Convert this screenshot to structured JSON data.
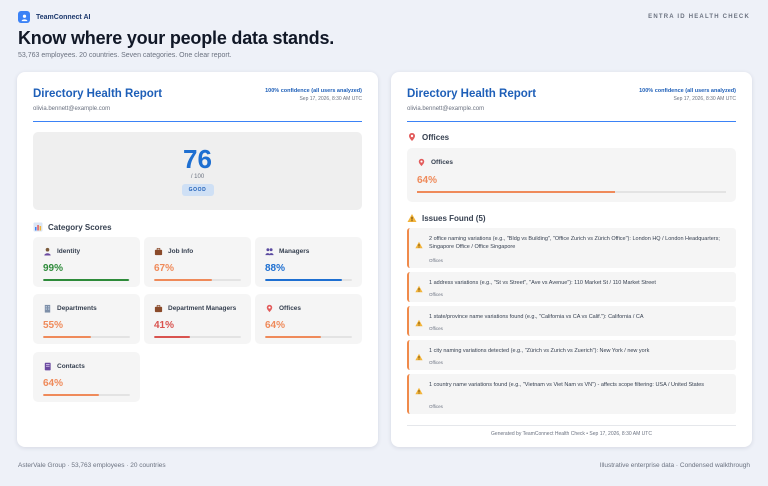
{
  "header": {
    "brand": "TeamConnect AI",
    "tag": "ENTRA ID HEALTH CHECK",
    "headline": "Know where your people data stands.",
    "subline": "53,763 employees. 20 countries. Seven categories. One clear report."
  },
  "report": {
    "title": "Directory Health Report",
    "email": "olivia.bennett@example.com",
    "confidence": "100% confidence (all users analyzed)",
    "date": "Sep 17, 2026, 8:30 AM UTC"
  },
  "score": {
    "value": "76",
    "denominator": "/ 100",
    "badge": "GOOD"
  },
  "category_section": {
    "title": "Category Scores",
    "icon": "bar-chart-icon"
  },
  "categories": [
    {
      "name": "Identity",
      "value": "99%",
      "fill": 0.99,
      "color": "#2e8b3a",
      "icon": "person-icon"
    },
    {
      "name": "Job Info",
      "value": "67%",
      "fill": 0.67,
      "color": "#ef8a5a",
      "icon": "briefcase-icon"
    },
    {
      "name": "Managers",
      "value": "88%",
      "fill": 0.88,
      "color": "#1e6fd1",
      "icon": "people-icon"
    },
    {
      "name": "Departments",
      "value": "55%",
      "fill": 0.55,
      "color": "#ef8a5a",
      "icon": "building-icon"
    },
    {
      "name": "Department Managers",
      "value": "41%",
      "fill": 0.41,
      "color": "#d9534f",
      "icon": "briefcase-icon"
    },
    {
      "name": "Offices",
      "value": "64%",
      "fill": 0.64,
      "color": "#ef8a5a",
      "icon": "pin-icon"
    },
    {
      "name": "Contacts",
      "value": "64%",
      "fill": 0.64,
      "color": "#ef8a5a",
      "icon": "contact-book-icon"
    }
  ],
  "offices_section": {
    "title": "Offices",
    "icon": "pin-icon"
  },
  "offices_box": {
    "name": "Offices",
    "value": "64%",
    "fill": 0.64
  },
  "issues_section": {
    "title": "Issues Found (5)",
    "icon": "warning-icon"
  },
  "issues": [
    {
      "text": "2 office naming variations (e.g., \"Bldg vs Building\", \"Office Zurich vs Zürich Office\"): London HQ / London Headquarters; Singapore Office / Office Singapore",
      "category": "Offices"
    },
    {
      "text": "1 address variations (e.g., \"St vs Street\", \"Ave vs Avenue\"): 110 Market St / 110 Market Street",
      "category": "Offices"
    },
    {
      "text": "1 state/province name variations found (e.g., \"California vs CA vs Calif.\"): California / CA",
      "category": "Offices"
    },
    {
      "text": "1 city naming variations detected (e.g., \"Zürich vs Zurich vs Zuerich\"): New York / new york",
      "category": "Offices"
    },
    {
      "text": "1 country name variations found (e.g., \"Vietnam vs Viet Nam vs VN\") - affects scope filtering: USA / United States",
      "category": "Offices"
    }
  ],
  "generated": "Generated by TeamConnect Health Check • Sep 17, 2026, 8:30 AM UTC",
  "footer": {
    "left": "AsterVale Group · 53,763 employees · 20 countries",
    "right": "Illustrative enterprise data · Condensed walkthrough"
  }
}
